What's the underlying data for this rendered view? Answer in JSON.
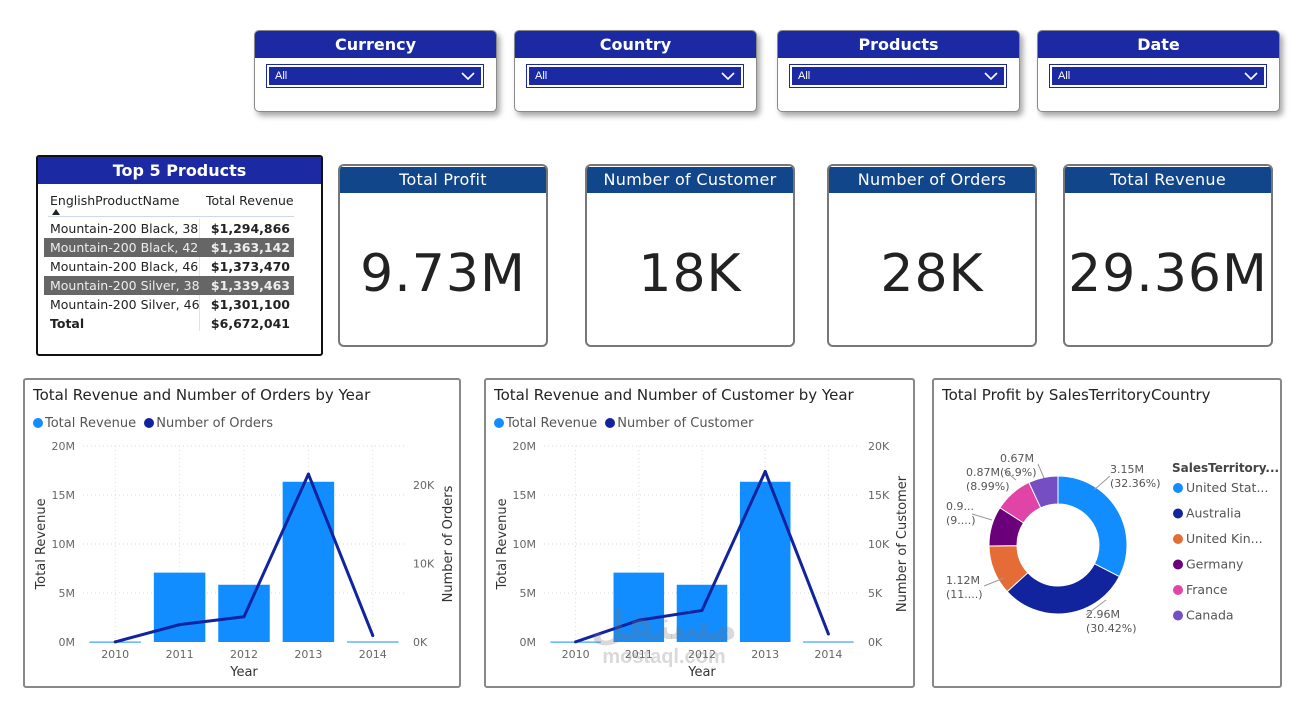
{
  "slicers": [
    {
      "title": "Currency",
      "value": "All"
    },
    {
      "title": "Country",
      "value": "All"
    },
    {
      "title": "Products",
      "value": "All"
    },
    {
      "title": "Date",
      "value": "All"
    }
  ],
  "top_products": {
    "title": "Top 5 Products",
    "col_name": "EnglishProductName",
    "col_rev": "Total Revenue",
    "rows": [
      {
        "name": "Mountain-200 Black, 38",
        "rev": "$1,294,866"
      },
      {
        "name": "Mountain-200 Black, 42",
        "rev": "$1,363,142"
      },
      {
        "name": "Mountain-200 Black, 46",
        "rev": "$1,373,470"
      },
      {
        "name": "Mountain-200 Silver, 38",
        "rev": "$1,339,463"
      },
      {
        "name": "Mountain-200 Silver, 46",
        "rev": "$1,301,100"
      }
    ],
    "total_label": "Total",
    "total_value": "$6,672,041"
  },
  "kpis": [
    {
      "title": "Total Profit",
      "value": "9.73M"
    },
    {
      "title": "Number of Customer",
      "value": "18K"
    },
    {
      "title": "Number of Orders",
      "value": "28K"
    },
    {
      "title": "Total Revenue",
      "value": "29.36M"
    }
  ],
  "colors": {
    "bar": "#118dff",
    "line": "#12239e",
    "slicer": "#1b2aa3",
    "kpi": "#12468a"
  },
  "chart_data": [
    {
      "type": "bar",
      "title": "Total Revenue and Number of Orders by Year",
      "categories": [
        "2010",
        "2011",
        "2012",
        "2013",
        "2014"
      ],
      "series": [
        {
          "name": "Total Revenue",
          "axis": "left",
          "kind": "bar",
          "values": [
            0.04,
            7.08,
            5.84,
            16.35,
            0.05
          ]
        },
        {
          "name": "Number of Orders",
          "axis": "right",
          "kind": "line",
          "values": [
            14,
            2216,
            3222,
            21417,
            818
          ]
        }
      ],
      "xlabel": "Year",
      "ylabel": "Total Revenue",
      "y2label": "Number of Orders",
      "ylim": [
        0,
        20
      ],
      "y2lim": [
        0,
        25000
      ],
      "yticks": [
        "0M",
        "5M",
        "10M",
        "15M",
        "20M"
      ],
      "y2ticks": [
        "0K",
        "10K",
        "20K"
      ],
      "y2tickvals": [
        0,
        10000,
        20000
      ]
    },
    {
      "type": "bar",
      "title": "Total Revenue and Number of Customer by Year",
      "categories": [
        "2010",
        "2011",
        "2012",
        "2013",
        "2014"
      ],
      "series": [
        {
          "name": "Total Revenue",
          "axis": "left",
          "kind": "bar",
          "values": [
            0.04,
            7.08,
            5.84,
            16.35,
            0.05
          ]
        },
        {
          "name": "Number of Customer",
          "axis": "right",
          "kind": "line",
          "values": [
            14,
            2216,
            3222,
            17400,
            818
          ]
        }
      ],
      "xlabel": "Year",
      "ylabel": "Total Revenue",
      "y2label": "Number of Customer",
      "ylim": [
        0,
        20
      ],
      "y2lim": [
        0,
        20000
      ],
      "yticks": [
        "0M",
        "5M",
        "10M",
        "15M",
        "20M"
      ],
      "y2ticks": [
        "0K",
        "5K",
        "10K",
        "15K",
        "20K"
      ],
      "y2tickvals": [
        0,
        5000,
        10000,
        15000,
        20000
      ]
    },
    {
      "type": "pie",
      "title": "Total Profit by SalesTerritoryCountry",
      "legend_title": "SalesTerritory...",
      "slices": [
        {
          "name": "United Stat...",
          "value": 3.15,
          "label": "3.15M",
          "pct": "(32.36%)",
          "color": "#118dff"
        },
        {
          "name": "Australia",
          "value": 2.96,
          "label": "2.96M",
          "pct": "(30.42%)",
          "color": "#12239e"
        },
        {
          "name": "United Kin...",
          "value": 1.12,
          "label": "1.12M",
          "pct": "(11....)",
          "color": "#e66c37"
        },
        {
          "name": "Germany",
          "value": 0.9,
          "label": "0.9...",
          "pct": "(9....)",
          "color": "#6b007b"
        },
        {
          "name": "France",
          "value": 0.87,
          "label": "0.87M",
          "pct": "(8.99%)",
          "color": "#e044a7"
        },
        {
          "name": "Canada",
          "value": 0.67,
          "label": "0.67M",
          "pct": "(6.9%)",
          "color": "#744ec2"
        }
      ]
    }
  ],
  "watermark": {
    "arabic": "مستقل",
    "latin": "mostaql.com"
  }
}
